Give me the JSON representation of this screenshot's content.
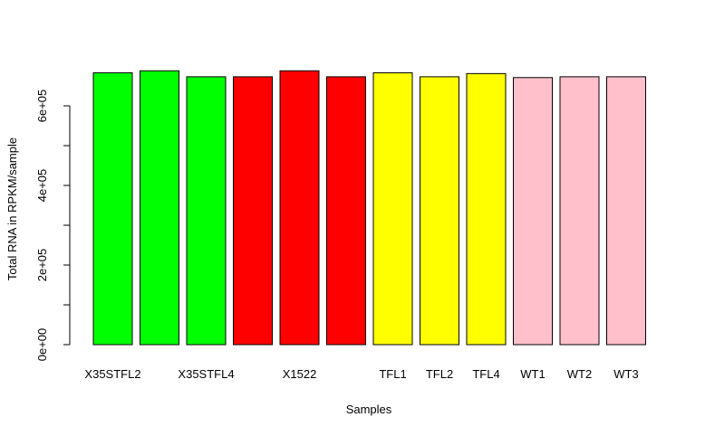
{
  "chart_data": {
    "type": "bar",
    "title": "",
    "xlabel": "Samples",
    "ylabel": "Total RNA in RPKM/sample",
    "ylim": [
      0,
      700000
    ],
    "yticks": [
      {
        "value": 0,
        "label": "0e+00"
      },
      {
        "value": 200000,
        "label": "2e+05"
      },
      {
        "value": 400000,
        "label": "4e+05"
      },
      {
        "value": 600000,
        "label": "6e+05"
      }
    ],
    "yminor": [
      100000,
      300000,
      500000
    ],
    "categories": [
      "X35STFL2",
      "",
      "X35STFL4",
      "",
      "X1522",
      "",
      "TFL1",
      "TFL2",
      "TFL4",
      "WT1",
      "WT2",
      "WT3"
    ],
    "values": [
      683000,
      688000,
      673000,
      673000,
      688000,
      673000,
      683000,
      673000,
      681000,
      671000,
      673000,
      673000
    ],
    "colors": [
      "#00ff00",
      "#00ff00",
      "#00ff00",
      "#ff0000",
      "#ff0000",
      "#ff0000",
      "#ffff00",
      "#ffff00",
      "#ffff00",
      "#ffc0cb",
      "#ffc0cb",
      "#ffc0cb"
    ],
    "grid": false,
    "legend": "none"
  }
}
